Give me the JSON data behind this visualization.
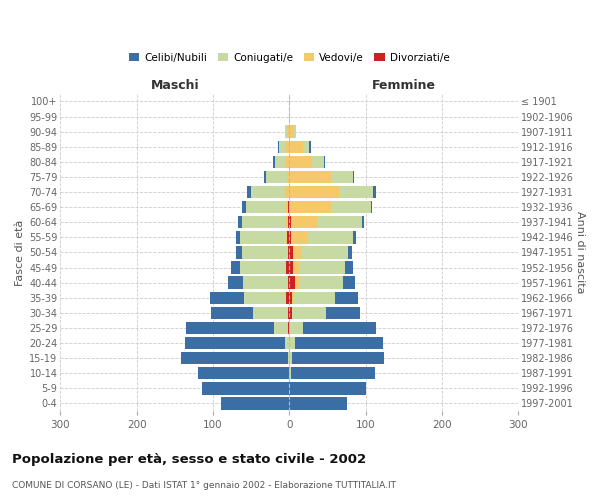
{
  "age_groups": [
    "0-4",
    "5-9",
    "10-14",
    "15-19",
    "20-24",
    "25-29",
    "30-34",
    "35-39",
    "40-44",
    "45-49",
    "50-54",
    "55-59",
    "60-64",
    "65-69",
    "70-74",
    "75-79",
    "80-84",
    "85-89",
    "90-94",
    "95-99",
    "100+"
  ],
  "birth_years": [
    "1997-2001",
    "1992-1996",
    "1987-1991",
    "1982-1986",
    "1977-1981",
    "1972-1976",
    "1967-1971",
    "1962-1966",
    "1957-1961",
    "1952-1956",
    "1947-1951",
    "1942-1946",
    "1937-1941",
    "1932-1936",
    "1927-1931",
    "1922-1926",
    "1917-1921",
    "1912-1916",
    "1907-1911",
    "1902-1906",
    "≤ 1901"
  ],
  "maschi": {
    "celibi": [
      90,
      115,
      120,
      140,
      130,
      115,
      55,
      45,
      20,
      12,
      8,
      6,
      5,
      5,
      5,
      2,
      2,
      2,
      0,
      0,
      0
    ],
    "coniugati": [
      0,
      0,
      0,
      2,
      6,
      18,
      45,
      55,
      58,
      60,
      60,
      60,
      58,
      52,
      45,
      28,
      15,
      8,
      3,
      1,
      0
    ],
    "vedovi": [
      0,
      0,
      0,
      0,
      0,
      0,
      0,
      0,
      0,
      0,
      0,
      1,
      2,
      3,
      5,
      3,
      4,
      5,
      3,
      0,
      0
    ],
    "divorziati": [
      0,
      0,
      0,
      0,
      0,
      2,
      2,
      4,
      2,
      4,
      2,
      3,
      2,
      2,
      0,
      0,
      0,
      0,
      0,
      0,
      0
    ]
  },
  "femmine": {
    "nubili": [
      75,
      100,
      110,
      120,
      115,
      95,
      45,
      30,
      15,
      10,
      5,
      3,
      3,
      2,
      3,
      2,
      2,
      2,
      0,
      0,
      0
    ],
    "coniugate": [
      0,
      0,
      2,
      4,
      8,
      18,
      45,
      55,
      58,
      60,
      60,
      60,
      58,
      52,
      45,
      28,
      15,
      8,
      3,
      0,
      0
    ],
    "vedove": [
      0,
      0,
      0,
      0,
      0,
      0,
      0,
      2,
      5,
      8,
      12,
      22,
      35,
      55,
      65,
      55,
      30,
      18,
      6,
      1,
      0
    ],
    "divorziate": [
      0,
      0,
      0,
      0,
      0,
      0,
      3,
      3,
      8,
      5,
      5,
      2,
      2,
      0,
      0,
      0,
      0,
      0,
      0,
      0,
      0
    ]
  },
  "colors": {
    "celibi": "#3a6ea5",
    "coniugati": "#c8daa4",
    "vedovi": "#f5c96a",
    "divorziati": "#cc2222"
  },
  "xlim": 300,
  "title": "Popolazione per età, sesso e stato civile - 2002",
  "subtitle": "COMUNE DI CORSANO (LE) - Dati ISTAT 1° gennaio 2002 - Elaborazione TUTTITALIA.IT",
  "ylabel_left": "Fasce di età",
  "ylabel_right": "Anni di nascita",
  "xlabel_maschi": "Maschi",
  "xlabel_femmine": "Femmine",
  "legend_labels": [
    "Celibi/Nubili",
    "Coniugati/e",
    "Vedovi/e",
    "Divorziati/e"
  ],
  "bg_color": "#ffffff",
  "grid_color": "#cccccc"
}
